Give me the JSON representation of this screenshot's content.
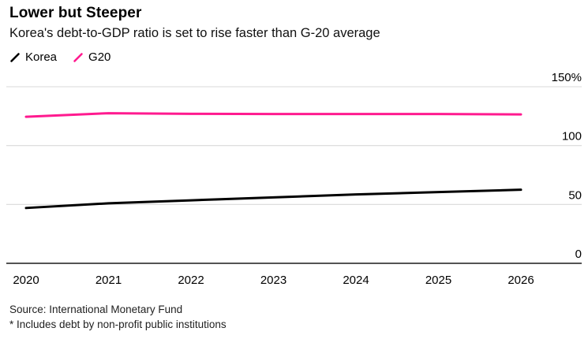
{
  "header": {
    "title": "Lower but Steeper",
    "subtitle": "Korea's debt-to-GDP ratio is set to rise faster than G-20 average"
  },
  "legend": [
    {
      "label": "Korea",
      "color": "#000000"
    },
    {
      "label": "G20",
      "color": "#ff1a8f"
    }
  ],
  "footer": {
    "source": "Source: International Monetary Fund",
    "note": "* Includes debt by non-profit public institutions"
  },
  "colors": {
    "gridline": "#d9d9d9",
    "baseline": "#1a1a1a",
    "background": "#ffffff"
  },
  "chart_data": {
    "type": "line",
    "title": "Lower but Steeper",
    "subtitle": "Korea's debt-to-GDP ratio is set to rise faster than G-20 average",
    "x": [
      2020,
      2021,
      2022,
      2023,
      2024,
      2025,
      2026
    ],
    "x_labels": [
      "2020",
      "2021",
      "2022",
      "2023",
      "2024",
      "2025",
      "2026"
    ],
    "series": [
      {
        "name": "Korea",
        "color": "#000000",
        "values": [
          47.0,
          51.0,
          53.5,
          56.0,
          58.5,
          60.5,
          62.5
        ]
      },
      {
        "name": "G20",
        "color": "#ff1a8f",
        "values": [
          124.5,
          127.5,
          127.0,
          126.8,
          126.8,
          126.8,
          126.5
        ]
      }
    ],
    "ylim": [
      0,
      150
    ],
    "yticks": [
      0,
      50,
      100,
      150
    ],
    "ytick_labels": [
      "0",
      "50",
      "100",
      "150%"
    ],
    "grid": "horizontal",
    "axis_label_side": "right",
    "legend_position": "top-left"
  }
}
